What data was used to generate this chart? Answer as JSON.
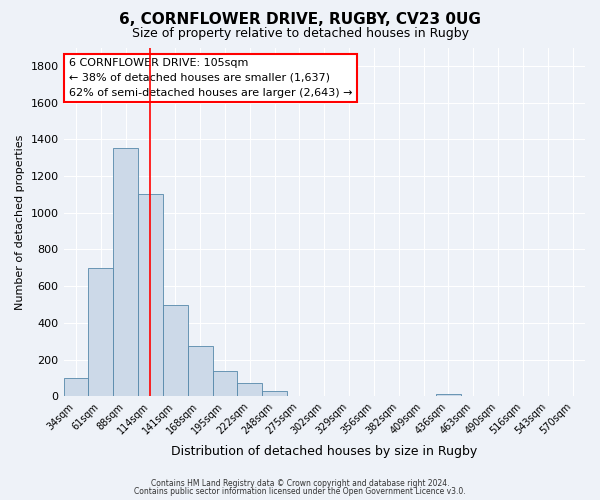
{
  "title": "6, CORNFLOWER DRIVE, RUGBY, CV23 0UG",
  "subtitle": "Size of property relative to detached houses in Rugby",
  "xlabel": "Distribution of detached houses by size in Rugby",
  "ylabel": "Number of detached properties",
  "bar_color": "#ccd9e8",
  "bar_edge_color": "#5588aa",
  "categories": [
    "34sqm",
    "61sqm",
    "88sqm",
    "114sqm",
    "141sqm",
    "168sqm",
    "195sqm",
    "222sqm",
    "248sqm",
    "275sqm",
    "302sqm",
    "329sqm",
    "356sqm",
    "382sqm",
    "409sqm",
    "436sqm",
    "463sqm",
    "490sqm",
    "516sqm",
    "543sqm",
    "570sqm"
  ],
  "values": [
    100,
    700,
    1350,
    1100,
    500,
    275,
    140,
    70,
    30,
    0,
    0,
    0,
    0,
    0,
    0,
    15,
    0,
    0,
    0,
    0,
    0
  ],
  "ylim": [
    0,
    1900
  ],
  "yticks": [
    0,
    200,
    400,
    600,
    800,
    1000,
    1200,
    1400,
    1600,
    1800
  ],
  "red_line_x": 3.0,
  "annotation_title": "6 CORNFLOWER DRIVE: 105sqm",
  "annotation_line1": "← 38% of detached houses are smaller (1,637)",
  "annotation_line2": "62% of semi-detached houses are larger (2,643) →",
  "footer1": "Contains HM Land Registry data © Crown copyright and database right 2024.",
  "footer2": "Contains public sector information licensed under the Open Government Licence v3.0.",
  "background_color": "#eef2f8",
  "grid_color": "#ffffff"
}
